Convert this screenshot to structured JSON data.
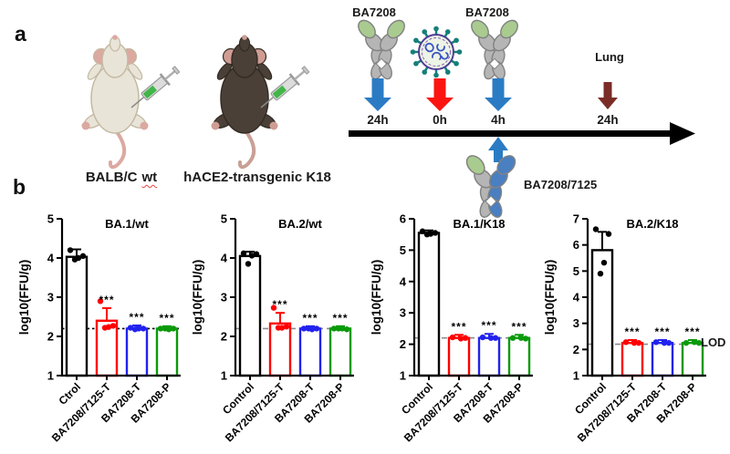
{
  "panel_a": {
    "label": "a",
    "mice": [
      {
        "label": "BALB/C",
        "label_wavy": "wt"
      },
      {
        "label": "hACE2-transgenic K18"
      }
    ],
    "timeline": {
      "antibody1_label": "BA7208",
      "antibody2_label": "BA7208",
      "bispecific_label": "BA7208/7125",
      "lung_label": "Lung",
      "times": [
        "24h",
        "0h",
        "4h",
        "24h"
      ],
      "colors": {
        "antibody_arrow": "#2b7bc4",
        "virus_arrow": "#fb1410",
        "lung_arrow": "#7a2d27",
        "timeline_arrow": "#000000",
        "antibody_tip_green": "#a9cb8f",
        "antibody_body_gray": "#b5b5b5",
        "bispecific_blue": "#4a7fc1",
        "virus_spike_teal": "#157f78"
      }
    }
  },
  "panel_b": {
    "label": "b",
    "lod_label": "LOD",
    "ylabel": "log10(FFU/g)"
  },
  "chart_data": [
    {
      "type": "bar",
      "title": "BA.1/wt",
      "ylabel": "log10(FFU/g)",
      "ylim": [
        1,
        5
      ],
      "categories": [
        "Ctrol",
        "BA7208/7125-T",
        "BA7208-T",
        "BA7208-P"
      ],
      "values": [
        4.03,
        2.4,
        2.2,
        2.2
      ],
      "bar_colors": [
        "#000000",
        "#ff0000",
        "#2222ee",
        "#0a9a0a"
      ],
      "error_top": [
        4.22,
        2.72,
        2.28,
        2.26
      ],
      "points": [
        [
          4.2,
          4.05,
          4.0,
          3.96
        ],
        [
          2.9,
          2.27,
          2.24,
          2.22
        ],
        [
          2.22,
          2.2,
          2.2,
          2.18
        ],
        [
          2.2,
          2.2,
          2.18,
          2.2
        ]
      ],
      "significance": [
        "",
        "***",
        "***",
        "***"
      ],
      "lod": 2.2,
      "lod_style": "dotted"
    },
    {
      "type": "bar",
      "title": "BA.2/wt",
      "ylabel": "log10(FFU/g)",
      "ylim": [
        1,
        5
      ],
      "categories": [
        "Control",
        "BA7208/7125-T",
        "BA7208-T",
        "BA7208-P"
      ],
      "values": [
        4.05,
        2.33,
        2.2,
        2.2
      ],
      "bar_colors": [
        "#000000",
        "#ff0000",
        "#2222ee",
        "#0a9a0a"
      ],
      "error_top": [
        4.16,
        2.6,
        2.26,
        2.26
      ],
      "points": [
        [
          4.12,
          4.1,
          4.06,
          3.85
        ],
        [
          2.73,
          2.25,
          2.22,
          2.22
        ],
        [
          2.2,
          2.2,
          2.18,
          2.2
        ],
        [
          2.2,
          2.18,
          2.2,
          2.2
        ]
      ],
      "significance": [
        "",
        "***",
        "***",
        "***"
      ],
      "lod": 2.2,
      "lod_style": "dashed"
    },
    {
      "type": "bar",
      "title": "BA.1/K18",
      "ylabel": "log10(FFU/g)",
      "ylim": [
        1,
        6
      ],
      "categories": [
        "Control",
        "BA7208/7125-T",
        "BA7208-T",
        "BA7208-P"
      ],
      "values": [
        5.55,
        2.2,
        2.2,
        2.2
      ],
      "bar_colors": [
        "#000000",
        "#ff0000",
        "#2222ee",
        "#0a9a0a"
      ],
      "error_top": [
        5.63,
        2.3,
        2.33,
        2.3
      ],
      "points": [
        [
          5.6,
          5.55,
          5.52,
          5.5
        ],
        [
          2.22,
          2.2,
          2.18
        ],
        [
          2.22,
          2.2,
          2.2
        ],
        [
          2.2,
          2.18,
          2.2
        ]
      ],
      "significance": [
        "",
        "***",
        "***",
        "***"
      ],
      "lod": 2.2,
      "lod_style": "dashed"
    },
    {
      "type": "bar",
      "title": "BA.2/K18",
      "ylabel": "log10(FFU/g)",
      "ylim": [
        1,
        7
      ],
      "categories": [
        "Control",
        "BA7208/7125-T",
        "BA7208-T",
        "BA7208-P"
      ],
      "values": [
        5.8,
        2.25,
        2.25,
        2.25
      ],
      "bar_colors": [
        "#000000",
        "#ff0000",
        "#2222ee",
        "#0a9a0a"
      ],
      "error_top": [
        6.5,
        2.36,
        2.36,
        2.36
      ],
      "points": [
        [
          6.6,
          6.42,
          5.32,
          4.9
        ],
        [
          2.28,
          2.25,
          2.25
        ],
        [
          2.28,
          2.25,
          2.25
        ],
        [
          2.25,
          2.25,
          2.28
        ]
      ],
      "significance": [
        "",
        "***",
        "***",
        "***"
      ],
      "lod": 2.2,
      "lod_style": "dashed"
    }
  ]
}
